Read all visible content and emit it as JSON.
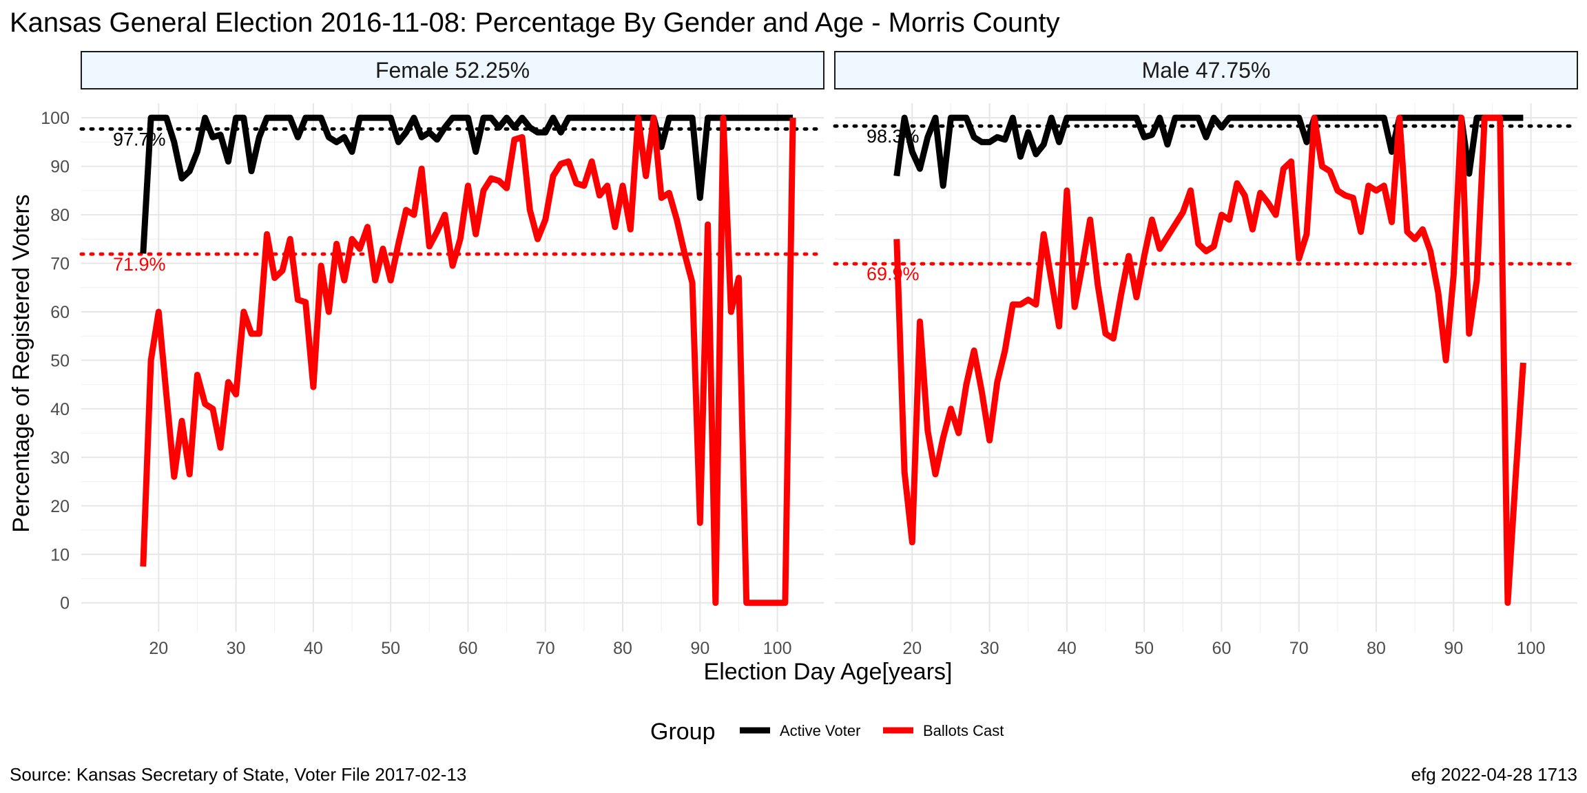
{
  "title": "Kansas General Election 2016-11-08:  Percentage By Gender and Age - Morris County",
  "source": "Source:  Kansas Secretary of State, Voter File  2017-02-13",
  "credit": "efg 2022-04-28 1713",
  "xlabel": "Election Day Age[years]",
  "ylabel": "Percentage of Registered Voters",
  "legend": {
    "title": "Group",
    "items": [
      {
        "label": "Active Voter",
        "color": "#000000"
      },
      {
        "label": "Ballots Cast",
        "color": "#ff0000"
      }
    ]
  },
  "colors": {
    "active": "#000000",
    "ballots": "#ff0000",
    "strip_fill": "#f0f8ff"
  },
  "chart_data": [
    {
      "type": "line",
      "panel": "Female 52.25%",
      "xlim": [
        10,
        106
      ],
      "ylim": [
        -6,
        103
      ],
      "x_ticks": [
        20,
        30,
        40,
        50,
        60,
        70,
        80,
        90,
        100
      ],
      "y_ticks": [
        0,
        10,
        20,
        30,
        40,
        50,
        60,
        70,
        80,
        90,
        100
      ],
      "grid": true,
      "reference_lines": [
        {
          "series": "Active Voter",
          "value": 97.7,
          "label": "97.7%"
        },
        {
          "series": "Ballots Cast",
          "value": 71.9,
          "label": "71.9%"
        }
      ],
      "series": [
        {
          "name": "Active Voter",
          "x": [
            18,
            19,
            20,
            21,
            22,
            23,
            24,
            25,
            26,
            27,
            28,
            29,
            30,
            31,
            32,
            33,
            34,
            35,
            36,
            37,
            38,
            39,
            40,
            41,
            42,
            43,
            44,
            45,
            46,
            47,
            48,
            49,
            50,
            51,
            52,
            53,
            54,
            55,
            56,
            57,
            58,
            59,
            60,
            61,
            62,
            63,
            64,
            65,
            66,
            67,
            68,
            69,
            70,
            71,
            72,
            73,
            74,
            75,
            76,
            77,
            78,
            79,
            80,
            81,
            82,
            83,
            84,
            85,
            86,
            87,
            88,
            89,
            90,
            91,
            92,
            93,
            94,
            95,
            96,
            97,
            98,
            99,
            100,
            101,
            102
          ],
          "y": [
            72,
            100,
            100,
            100,
            95,
            87.5,
            89,
            93,
            100,
            96,
            96.5,
            91,
            100,
            100,
            89,
            96,
            100,
            100,
            100,
            100,
            96,
            100,
            100,
            100,
            96,
            95,
            96,
            93,
            100,
            100,
            100,
            100,
            100,
            95,
            97,
            100,
            96,
            97,
            95.5,
            98,
            100,
            100,
            100,
            93,
            100,
            100,
            98,
            100,
            98,
            100,
            98,
            97,
            97,
            100,
            97,
            100,
            100,
            100,
            100,
            100,
            100,
            100,
            100,
            100,
            100,
            100,
            100,
            94,
            100,
            100,
            100,
            100,
            83.5,
            100,
            100,
            100,
            100,
            100,
            100,
            100,
            100,
            100,
            100,
            100,
            100
          ]
        },
        {
          "name": "Ballots Cast",
          "x": [
            18,
            19,
            20,
            21,
            22,
            23,
            24,
            25,
            26,
            27,
            28,
            29,
            30,
            31,
            32,
            33,
            34,
            35,
            36,
            37,
            38,
            39,
            40,
            41,
            42,
            43,
            44,
            45,
            46,
            47,
            48,
            49,
            50,
            51,
            52,
            53,
            54,
            55,
            56,
            57,
            58,
            59,
            60,
            61,
            62,
            63,
            64,
            65,
            66,
            67,
            68,
            69,
            70,
            71,
            72,
            73,
            74,
            75,
            76,
            77,
            78,
            79,
            80,
            81,
            82,
            83,
            84,
            85,
            86,
            87,
            88,
            89,
            90,
            91,
            92,
            93,
            94,
            95,
            96,
            97,
            98,
            99,
            100,
            101,
            102
          ],
          "y": [
            7.5,
            50,
            60,
            43,
            26,
            37.5,
            26.5,
            47,
            41,
            40,
            32,
            45.5,
            43,
            60,
            55.5,
            55.5,
            76,
            67,
            68.5,
            75,
            62.5,
            62,
            44.5,
            69.5,
            60,
            74,
            66.5,
            75,
            73,
            77.5,
            66.5,
            73,
            66.5,
            74,
            81,
            80,
            89.5,
            73.5,
            76.5,
            80,
            69.5,
            75,
            86,
            76,
            85,
            87.5,
            87,
            85.5,
            95.5,
            96,
            81,
            75,
            79,
            88,
            90.5,
            91,
            86.5,
            86,
            91,
            84,
            86,
            77.5,
            86,
            77,
            100,
            88,
            100,
            83.5,
            84.5,
            79,
            72,
            66,
            16.5,
            78,
            0,
            100,
            60,
            67,
            0,
            0,
            0,
            0,
            0,
            0,
            100
          ]
        }
      ]
    },
    {
      "type": "line",
      "panel": "Male 47.75%",
      "xlim": [
        10,
        106
      ],
      "ylim": [
        -6,
        103
      ],
      "x_ticks": [
        20,
        30,
        40,
        50,
        60,
        70,
        80,
        90,
        100
      ],
      "y_ticks": [
        0,
        10,
        20,
        30,
        40,
        50,
        60,
        70,
        80,
        90,
        100
      ],
      "grid": true,
      "reference_lines": [
        {
          "series": "Active Voter",
          "value": 98.3,
          "label": "98.3%"
        },
        {
          "series": "Ballots Cast",
          "value": 69.9,
          "label": "69.9%"
        }
      ],
      "series": [
        {
          "name": "Active Voter",
          "x": [
            18,
            19,
            20,
            21,
            22,
            23,
            24,
            25,
            26,
            27,
            28,
            29,
            30,
            31,
            32,
            33,
            34,
            35,
            36,
            37,
            38,
            39,
            40,
            41,
            42,
            43,
            44,
            45,
            46,
            47,
            48,
            49,
            50,
            51,
            52,
            53,
            54,
            55,
            56,
            57,
            58,
            59,
            60,
            61,
            62,
            63,
            64,
            65,
            66,
            67,
            68,
            69,
            70,
            71,
            72,
            73,
            74,
            75,
            76,
            77,
            78,
            79,
            80,
            81,
            82,
            83,
            84,
            85,
            86,
            87,
            88,
            89,
            90,
            91,
            92,
            93,
            94,
            95,
            96,
            97,
            98,
            99
          ],
          "y": [
            88,
            100,
            93,
            89.5,
            96,
            100,
            86,
            100,
            100,
            100,
            96,
            95,
            95,
            96,
            95.5,
            100,
            92,
            97,
            92.5,
            94.5,
            100,
            95,
            100,
            100,
            100,
            100,
            100,
            100,
            100,
            100,
            100,
            100,
            96,
            96.5,
            100,
            94.5,
            100,
            100,
            100,
            100,
            96,
            100,
            98,
            100,
            100,
            100,
            100,
            100,
            100,
            100,
            100,
            100,
            100,
            95,
            100,
            100,
            100,
            100,
            100,
            100,
            100,
            100,
            100,
            100,
            93,
            100,
            100,
            100,
            100,
            100,
            100,
            100,
            100,
            100,
            88.5,
            100,
            100,
            100,
            100,
            100,
            100,
            100
          ]
        },
        {
          "name": "Ballots Cast",
          "x": [
            18,
            19,
            20,
            21,
            22,
            23,
            24,
            25,
            26,
            27,
            28,
            29,
            30,
            31,
            32,
            33,
            34,
            35,
            36,
            37,
            38,
            39,
            40,
            41,
            42,
            43,
            44,
            45,
            46,
            47,
            48,
            49,
            50,
            51,
            52,
            53,
            54,
            55,
            56,
            57,
            58,
            59,
            60,
            61,
            62,
            63,
            64,
            65,
            66,
            67,
            68,
            69,
            70,
            71,
            72,
            73,
            74,
            75,
            76,
            77,
            78,
            79,
            80,
            81,
            82,
            83,
            84,
            85,
            86,
            87,
            88,
            89,
            90,
            91,
            92,
            93,
            94,
            95,
            96,
            97,
            98,
            99
          ],
          "y": [
            75,
            27,
            12.5,
            58,
            35.5,
            26.5,
            34,
            40,
            35,
            45,
            52,
            43.5,
            33.5,
            45.5,
            52,
            61.5,
            61.5,
            62.5,
            61.5,
            76,
            66.5,
            57,
            85,
            61,
            69.5,
            79,
            65.5,
            55.5,
            54.5,
            63.5,
            71.5,
            63,
            71.5,
            79,
            73,
            75.5,
            78,
            80.5,
            85,
            74,
            72.5,
            73.5,
            80,
            79,
            86.5,
            84,
            77,
            84.5,
            82.5,
            80,
            89.5,
            91,
            71,
            76,
            100,
            90,
            89,
            85,
            84,
            83.5,
            76.5,
            86,
            85,
            86,
            78.5,
            100,
            76.5,
            75,
            77,
            72.5,
            64,
            50,
            67.5,
            100,
            55.5,
            66.5,
            100,
            100,
            100,
            0,
            25.5,
            49.5
          ]
        }
      ]
    }
  ]
}
